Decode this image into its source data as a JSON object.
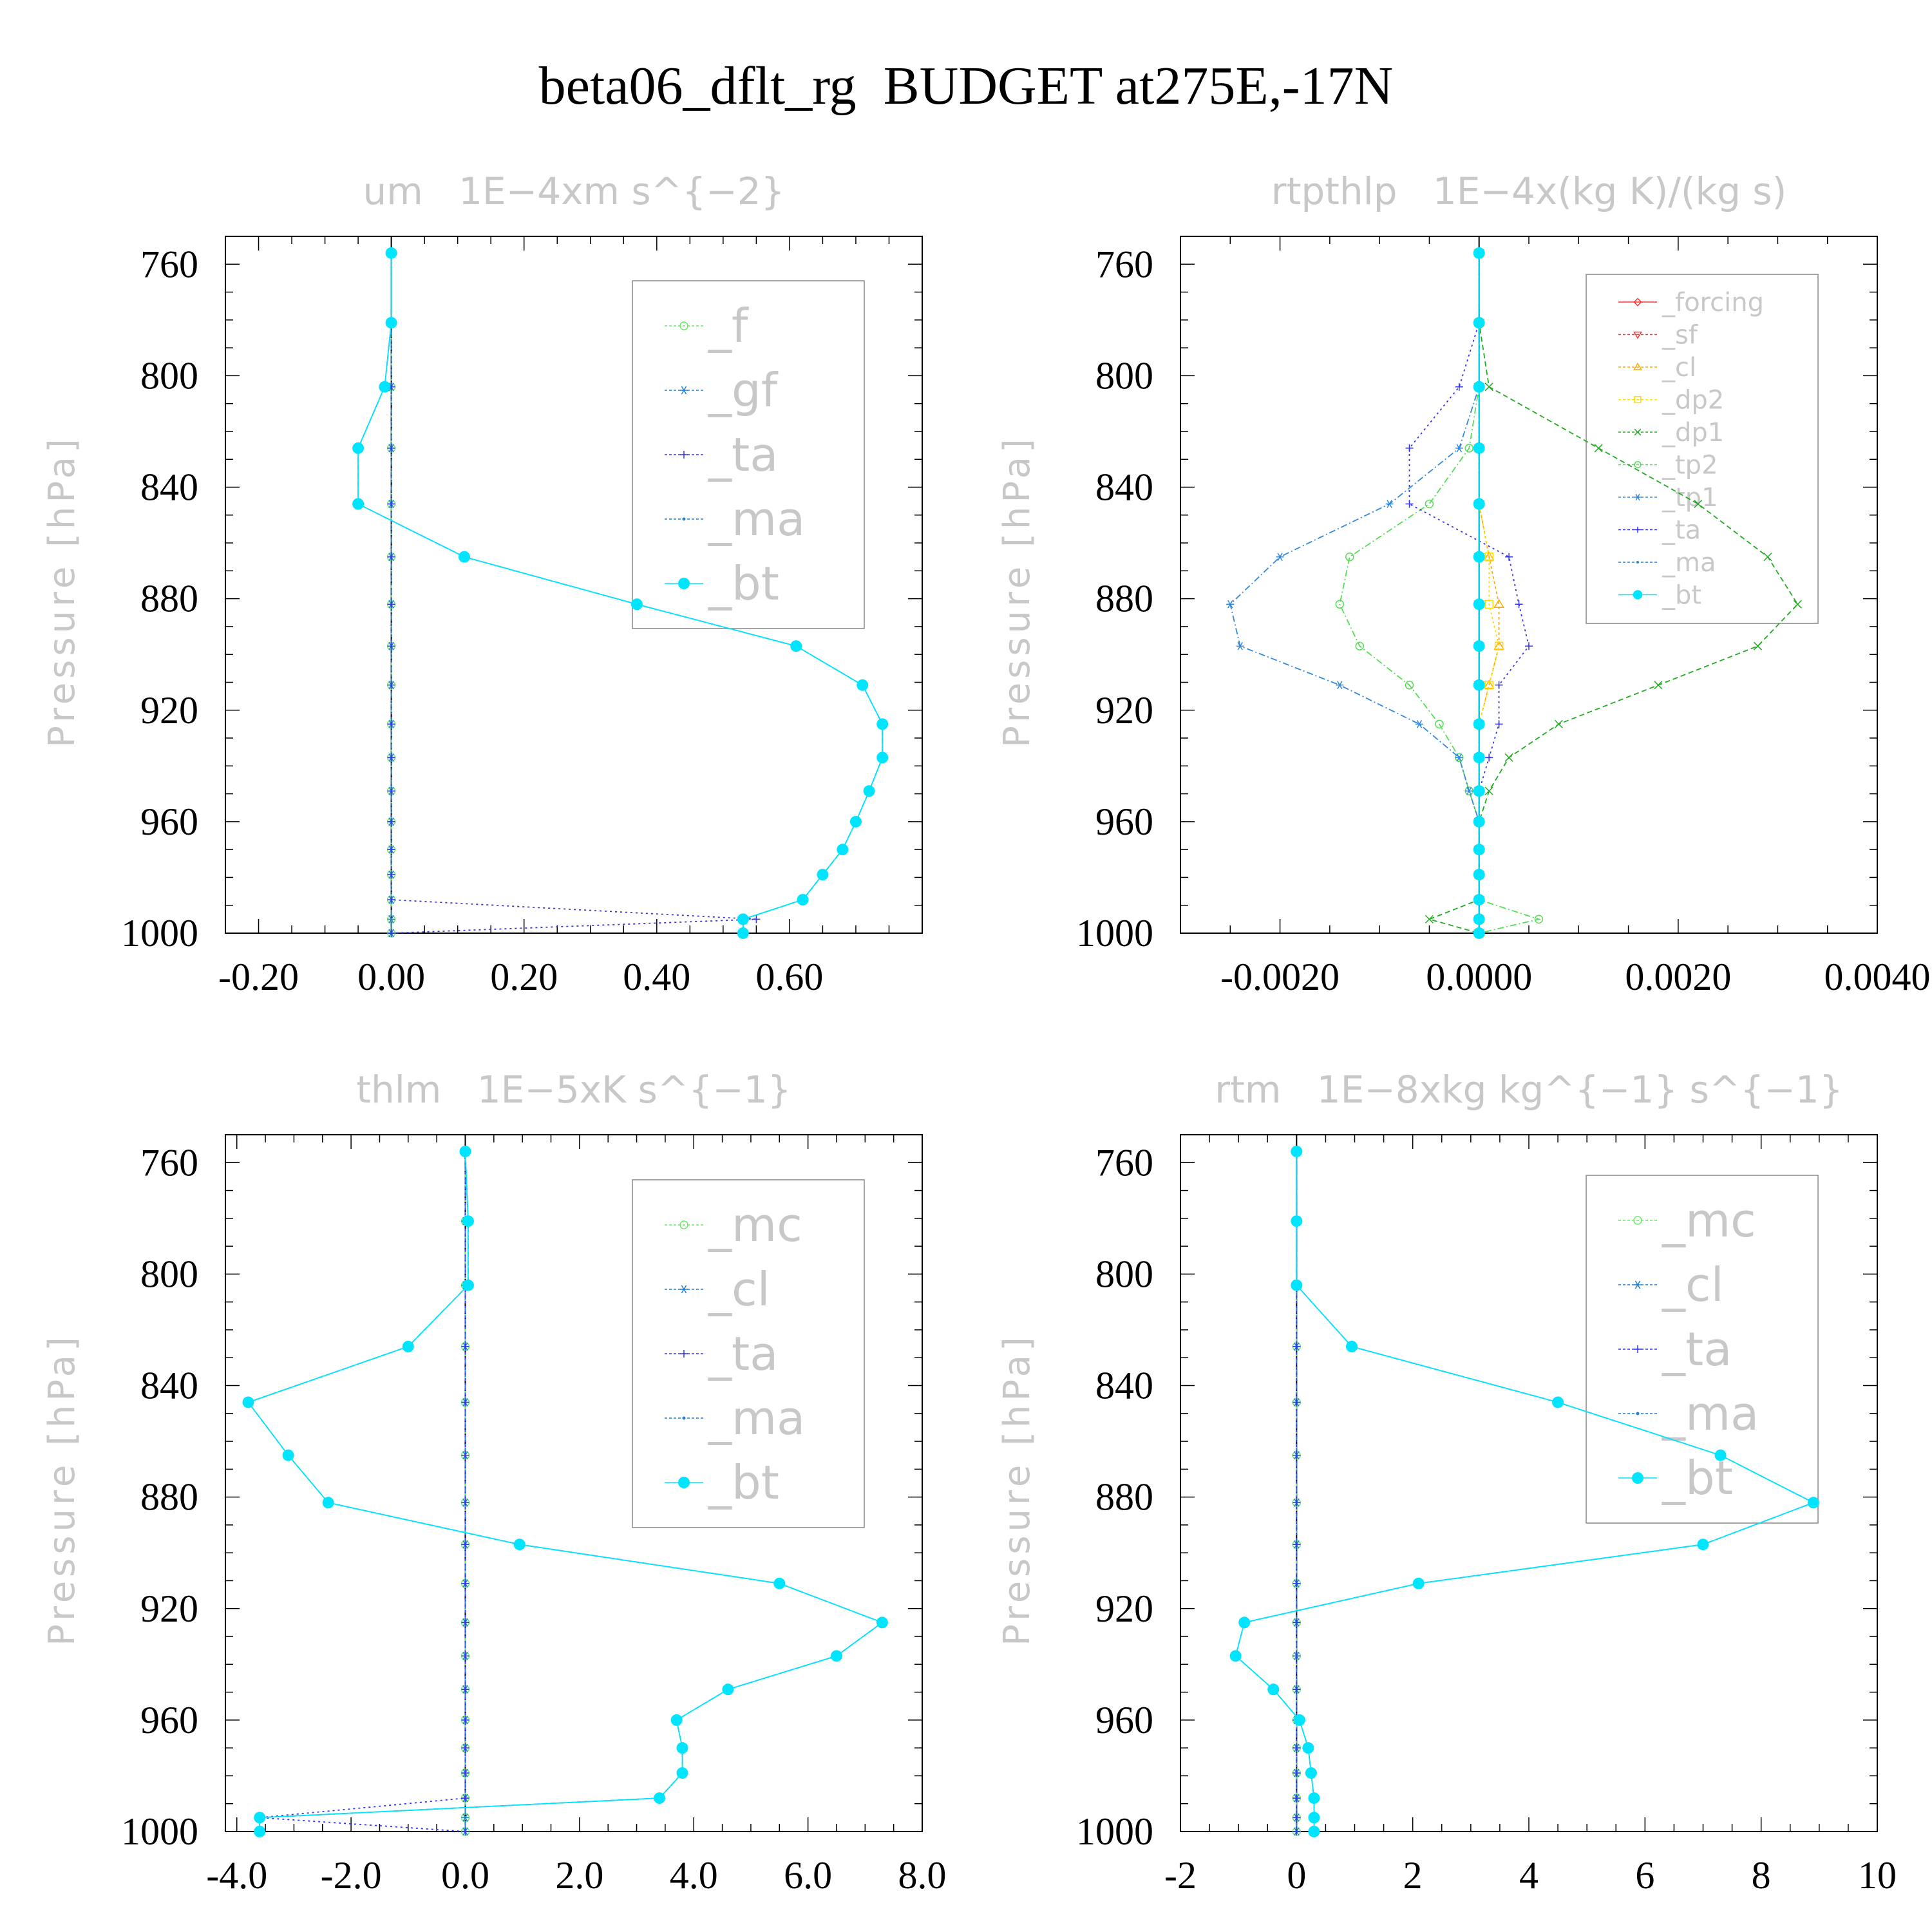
{
  "figure_title": "beta06_dflt_rg  BUDGET at275E,-17N",
  "colors": {
    "frame": "#000000",
    "muted_text": "#c8c8c8",
    "f": "#66ee66",
    "gf": "#1f7fd0",
    "ta": "#3333ee",
    "ma": "#1f7fd0",
    "bt": "#00e5ff",
    "mc": "#66ee66",
    "cl_blue": "#1f7fd0",
    "forcing": "#ff3333",
    "sf": "#ff3333",
    "cl_orange": "#ffaa00",
    "dp2": "#ffdd00",
    "dp1": "#22aa22",
    "tp2": "#55dd55",
    "tp1": "#3388dd",
    "ta_blue": "#3333ee"
  },
  "chart_data": [
    {
      "type": "line",
      "title": "um   1E−4xm s^{−2}",
      "ylabel": "Pressure [hPa]",
      "xlim": [
        -0.25,
        0.8
      ],
      "ylim": [
        1000,
        750
      ],
      "xticks": [
        -0.2,
        0.0,
        0.2,
        0.4,
        0.6
      ],
      "xtick_labels": [
        "-0.20",
        "0.00",
        "0.20",
        "0.40",
        "0.60"
      ],
      "yticks": [
        760,
        800,
        840,
        880,
        920,
        960,
        1000
      ],
      "ytick_labels": [
        "760",
        "800",
        "840",
        "880",
        "920",
        "960",
        "1000"
      ],
      "legend_position": "top-right",
      "pressure": [
        756,
        781,
        804,
        826,
        846,
        865,
        882,
        897,
        911,
        925,
        937,
        949,
        960,
        970,
        979,
        988,
        995,
        1000
      ],
      "series": [
        {
          "name": "_f",
          "color_key": "f",
          "marker": "circle",
          "dash": "6,6",
          "values": [
            0,
            0,
            0,
            0,
            0,
            0,
            0,
            0,
            0,
            0,
            0,
            0,
            0,
            0,
            0,
            0,
            0,
            0
          ]
        },
        {
          "name": "_gf",
          "color_key": "gf",
          "marker": "star",
          "dash": "10,4,2,4",
          "values": [
            0,
            0,
            0,
            0,
            0,
            0,
            0,
            0,
            0,
            0,
            0,
            0,
            0,
            0,
            0,
            0,
            0,
            0
          ]
        },
        {
          "name": "_ta",
          "color_key": "ta",
          "marker": "plus",
          "dash": "3,5",
          "values": [
            0,
            0,
            0,
            0,
            0,
            0,
            0,
            0,
            0,
            0,
            0,
            0,
            0,
            0,
            0,
            0,
            0.55,
            0
          ]
        },
        {
          "name": "_ma",
          "color_key": "ma",
          "marker": "dot",
          "dash": "8,5",
          "values": [
            0,
            0,
            -0.01,
            -0.05,
            -0.05,
            0.11,
            0.37,
            0.61,
            0.71,
            0.74,
            0.74,
            0.72,
            0.7,
            0.68,
            0.65,
            0.62,
            0.53,
            0.53
          ]
        },
        {
          "name": "_bt",
          "color_key": "bt",
          "marker": "bigdot",
          "dash": "",
          "values": [
            0,
            0,
            -0.01,
            -0.05,
            -0.05,
            0.11,
            0.37,
            0.61,
            0.71,
            0.74,
            0.74,
            0.72,
            0.7,
            0.68,
            0.65,
            0.62,
            0.53,
            0.53
          ]
        }
      ]
    },
    {
      "type": "line",
      "title": "rtpthlp   1E−4x(kg K)/(kg s)",
      "ylabel": "Pressure [hPa]",
      "xlim": [
        -0.003,
        0.004
      ],
      "ylim": [
        1000,
        750
      ],
      "xticks": [
        -0.002,
        0.0,
        0.002,
        0.004
      ],
      "xtick_labels": [
        "-0.0020",
        "0.0000",
        "0.0020",
        "0.0040"
      ],
      "yticks": [
        760,
        800,
        840,
        880,
        920,
        960,
        1000
      ],
      "ytick_labels": [
        "760",
        "800",
        "840",
        "880",
        "920",
        "960",
        "1000"
      ],
      "legend_position": "top-right",
      "pressure": [
        756,
        781,
        804,
        826,
        846,
        865,
        882,
        897,
        911,
        925,
        937,
        949,
        960,
        970,
        979,
        988,
        995,
        1000
      ],
      "series": [
        {
          "name": "_forcing",
          "color_key": "forcing",
          "marker": "diamond",
          "dash": "",
          "values": [
            0,
            0,
            0,
            0,
            0,
            0,
            0,
            0,
            0,
            0,
            0,
            0,
            0,
            0,
            0,
            0,
            0,
            0
          ]
        },
        {
          "name": "_sf",
          "color_key": "sf",
          "marker": "tri-down",
          "dash": "6,4",
          "values": [
            0,
            0,
            0,
            0,
            0,
            0,
            0,
            0,
            0,
            0,
            0,
            0,
            0,
            0,
            0,
            0,
            0,
            0
          ]
        },
        {
          "name": "_cl",
          "color_key": "cl_orange",
          "marker": "tri-up",
          "dash": "4,4",
          "values": [
            0,
            0,
            0,
            0,
            0,
            0.0001,
            0.0002,
            0.0002,
            0.0001,
            0,
            0,
            0,
            0,
            0,
            0,
            0,
            0,
            0
          ]
        },
        {
          "name": "_dp2",
          "color_key": "dp2",
          "marker": "square",
          "dash": "3,4",
          "values": [
            0,
            0,
            0,
            0,
            0,
            0.0001,
            0.0001,
            0.0002,
            0.0001,
            0,
            0,
            0,
            0,
            0,
            0,
            0,
            0,
            0
          ]
        },
        {
          "name": "_dp1",
          "color_key": "dp1",
          "marker": "cross",
          "dash": "8,5",
          "values": [
            0,
            0,
            0.0001,
            0.0012,
            0.0022,
            0.0029,
            0.0032,
            0.0028,
            0.0018,
            0.0008,
            0.0003,
            0.0001,
            0,
            0,
            0,
            0,
            -0.0005,
            0
          ]
        },
        {
          "name": "_tp2",
          "color_key": "tp2",
          "marker": "circle",
          "dash": "10,4,2,4",
          "values": [
            0,
            0,
            0,
            -0.0001,
            -0.0005,
            -0.0013,
            -0.0014,
            -0.0012,
            -0.0007,
            -0.0004,
            -0.0002,
            -0.0001,
            0,
            0,
            0,
            0,
            0.0006,
            0
          ]
        },
        {
          "name": "_tp1",
          "color_key": "tp1",
          "marker": "star",
          "dash": "10,4,2,4",
          "values": [
            0,
            0,
            0,
            -0.0002,
            -0.0009,
            -0.002,
            -0.0025,
            -0.0024,
            -0.0014,
            -0.0006,
            -0.0002,
            -0.0001,
            0,
            0,
            0,
            0,
            0,
            0
          ]
        },
        {
          "name": "_ta",
          "color_key": "ta_blue",
          "marker": "plus",
          "dash": "3,5",
          "values": [
            0,
            0,
            -0.0002,
            -0.0007,
            -0.0007,
            0.0003,
            0.0004,
            0.0005,
            0.0002,
            0.0002,
            0.0001,
            0,
            0,
            0,
            0,
            0,
            0,
            0
          ]
        },
        {
          "name": "_ma",
          "color_key": "ma",
          "marker": "dot",
          "dash": "8,5",
          "values": [
            0,
            0,
            0,
            0,
            0,
            0,
            0,
            0,
            0,
            0,
            0,
            0,
            0,
            0,
            0,
            0,
            0,
            0
          ]
        },
        {
          "name": "_bt",
          "color_key": "bt",
          "marker": "bigdot",
          "dash": "",
          "values": [
            0,
            0,
            0,
            0,
            0,
            0,
            0,
            0,
            0,
            0,
            0,
            0,
            0,
            0,
            0,
            0,
            0,
            0
          ]
        }
      ]
    },
    {
      "type": "line",
      "title": "thlm   1E−5xK s^{−1}",
      "ylabel": "Pressure [hPa]",
      "xlim": [
        -4.2,
        8.0
      ],
      "ylim": [
        1000,
        750
      ],
      "xticks": [
        -4,
        -2,
        0,
        2,
        4,
        6,
        8
      ],
      "xtick_labels": [
        "-4.0",
        "-2.0",
        "0.0",
        "2.0",
        "4.0",
        "6.0",
        "8.0"
      ],
      "yticks": [
        760,
        800,
        840,
        880,
        920,
        960,
        1000
      ],
      "ytick_labels": [
        "760",
        "800",
        "840",
        "880",
        "920",
        "960",
        "1000"
      ],
      "legend_position": "top-right",
      "pressure": [
        756,
        781,
        804,
        826,
        846,
        865,
        882,
        897,
        911,
        925,
        937,
        949,
        960,
        970,
        979,
        988,
        995,
        1000
      ],
      "series": [
        {
          "name": "_mc",
          "color_key": "mc",
          "marker": "circle",
          "dash": "6,6",
          "values": [
            0,
            0,
            0,
            0,
            0,
            0,
            0,
            0,
            0,
            0,
            0,
            0,
            0,
            0,
            0,
            0,
            0,
            0
          ]
        },
        {
          "name": "_cl",
          "color_key": "cl_blue",
          "marker": "star",
          "dash": "10,4,2,4",
          "values": [
            0,
            0,
            0,
            0,
            0,
            0,
            0,
            0,
            0,
            0,
            0,
            0,
            0,
            0,
            0,
            0,
            0,
            0
          ]
        },
        {
          "name": "_ta",
          "color_key": "ta",
          "marker": "plus",
          "dash": "3,5",
          "values": [
            0,
            0,
            0,
            0,
            0,
            0,
            0,
            0,
            0,
            0,
            0,
            0,
            0,
            0,
            0,
            0,
            -3.6,
            0
          ]
        },
        {
          "name": "_ma",
          "color_key": "ma",
          "marker": "dot",
          "dash": "8,5",
          "values": [
            0,
            0.05,
            0.05,
            -1.0,
            -3.8,
            -3.1,
            -2.4,
            0.95,
            5.5,
            7.3,
            6.5,
            4.6,
            3.7,
            3.8,
            3.8,
            3.4,
            -3.6,
            -3.6
          ]
        },
        {
          "name": "_bt",
          "color_key": "bt",
          "marker": "bigdot",
          "dash": "",
          "values": [
            0,
            0.05,
            0.05,
            -1.0,
            -3.8,
            -3.1,
            -2.4,
            0.95,
            5.5,
            7.3,
            6.5,
            4.6,
            3.7,
            3.8,
            3.8,
            3.4,
            -3.6,
            -3.6
          ]
        }
      ]
    },
    {
      "type": "line",
      "title": "rtm   1E−8xkg kg^{−1} s^{−1}",
      "ylabel": "Pressure [hPa]",
      "xlim": [
        -2,
        10
      ],
      "ylim": [
        1000,
        750
      ],
      "xticks": [
        -2,
        0,
        2,
        4,
        6,
        8,
        10
      ],
      "xtick_labels": [
        "-2",
        "0",
        "2",
        "4",
        "6",
        "8",
        "10"
      ],
      "yticks": [
        760,
        800,
        840,
        880,
        920,
        960,
        1000
      ],
      "ytick_labels": [
        "760",
        "800",
        "840",
        "880",
        "920",
        "960",
        "1000"
      ],
      "legend_position": "top-right",
      "pressure": [
        756,
        781,
        804,
        826,
        846,
        865,
        882,
        897,
        911,
        925,
        937,
        949,
        960,
        970,
        979,
        988,
        995,
        1000
      ],
      "series": [
        {
          "name": "_mc",
          "color_key": "mc",
          "marker": "circle",
          "dash": "6,6",
          "values": [
            0,
            0,
            0,
            0,
            0,
            0,
            0,
            0,
            0,
            0,
            0,
            0,
            0,
            0,
            0,
            0,
            0,
            0
          ]
        },
        {
          "name": "_cl",
          "color_key": "cl_blue",
          "marker": "star",
          "dash": "10,4,2,4",
          "values": [
            0,
            0,
            0,
            0,
            0,
            0,
            0,
            0,
            0,
            0,
            0,
            0,
            0,
            0,
            0,
            0,
            0,
            0
          ]
        },
        {
          "name": "_ta",
          "color_key": "ta",
          "marker": "plus",
          "dash": "3,5",
          "values": [
            0,
            0,
            0,
            0,
            0,
            0,
            0,
            0,
            0,
            0,
            0,
            0,
            0,
            0,
            0,
            0,
            0,
            0
          ]
        },
        {
          "name": "_ma",
          "color_key": "ma",
          "marker": "dot",
          "dash": "8,5",
          "values": [
            0,
            0,
            0,
            0.95,
            4.5,
            7.3,
            8.9,
            7.0,
            2.1,
            -0.9,
            -1.05,
            -0.4,
            0.05,
            0.2,
            0.25,
            0.3,
            0.3,
            0.3
          ]
        },
        {
          "name": "_bt",
          "color_key": "bt",
          "marker": "bigdot",
          "dash": "",
          "values": [
            0,
            0,
            0,
            0.95,
            4.5,
            7.3,
            8.9,
            7.0,
            2.1,
            -0.9,
            -1.05,
            -0.4,
            0.05,
            0.2,
            0.25,
            0.3,
            0.3,
            0.3
          ]
        }
      ]
    }
  ]
}
